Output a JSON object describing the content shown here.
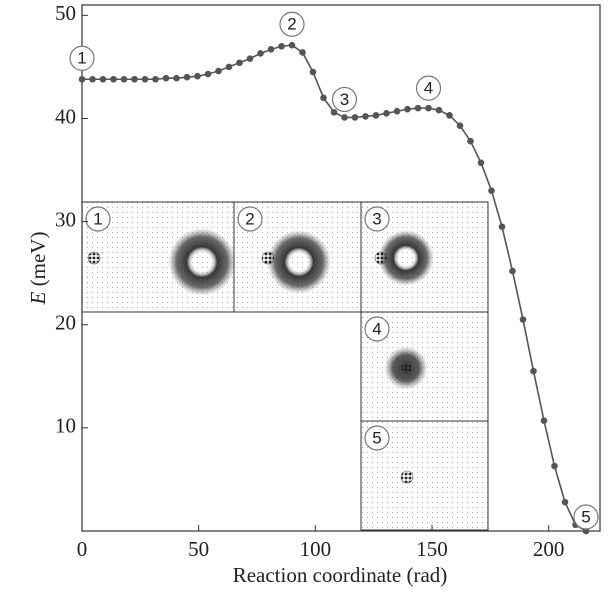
{
  "chart_data": {
    "type": "line",
    "xlabel": "Reaction coordinate (rad)",
    "ylabel_symbol": "E",
    "ylabel_unit": "(meV)",
    "x": [
      0,
      4.5,
      9,
      13.5,
      18,
      22.5,
      27,
      31.5,
      36,
      40.5,
      45,
      49.5,
      54,
      58.5,
      63,
      67.5,
      72,
      76.5,
      81,
      85.5,
      90,
      94.5,
      99,
      103.5,
      108,
      112.5,
      117,
      121.5,
      126,
      130.5,
      135,
      139.5,
      144,
      148.5,
      153,
      157.5,
      162,
      166.5,
      171,
      175.5,
      180,
      184.5,
      189,
      193.5,
      198,
      202.5,
      207,
      211.5,
      216
    ],
    "series": [
      {
        "color": "#555555",
        "values": [
          43.8,
          43.8,
          43.8,
          43.8,
          43.8,
          43.8,
          43.8,
          43.8,
          43.9,
          43.9,
          44,
          44.1,
          44.3,
          44.6,
          45,
          45.4,
          45.8,
          46.3,
          46.7,
          47,
          47.1,
          46.4,
          44.5,
          42,
          40.6,
          40.1,
          40.1,
          40.2,
          40.3,
          40.5,
          40.7,
          40.9,
          41,
          41,
          40.8,
          40.3,
          39.3,
          37.8,
          35.7,
          33,
          29.5,
          25.2,
          20.5,
          15.5,
          10.7,
          6.3,
          2.8,
          0.6,
          0
        ]
      }
    ],
    "xlim": [
      0,
      222
    ],
    "ylim": [
      0,
      51
    ],
    "xticks": [
      0,
      50,
      100,
      150,
      200
    ],
    "yticks": [
      10,
      20,
      30,
      40,
      50
    ],
    "annotations": [
      {
        "text": "1",
        "x": 0,
        "y": 43.8
      },
      {
        "text": "2",
        "x": 90,
        "y": 47.1
      },
      {
        "text": "3",
        "x": 112.5,
        "y": 40.1
      },
      {
        "text": "4",
        "x": 148.5,
        "y": 41
      },
      {
        "text": "5",
        "x": 216,
        "y": 0
      }
    ],
    "insets": [
      {
        "label": "1"
      },
      {
        "label": "2"
      },
      {
        "label": "3"
      },
      {
        "label": "4"
      },
      {
        "label": "5"
      }
    ]
  }
}
